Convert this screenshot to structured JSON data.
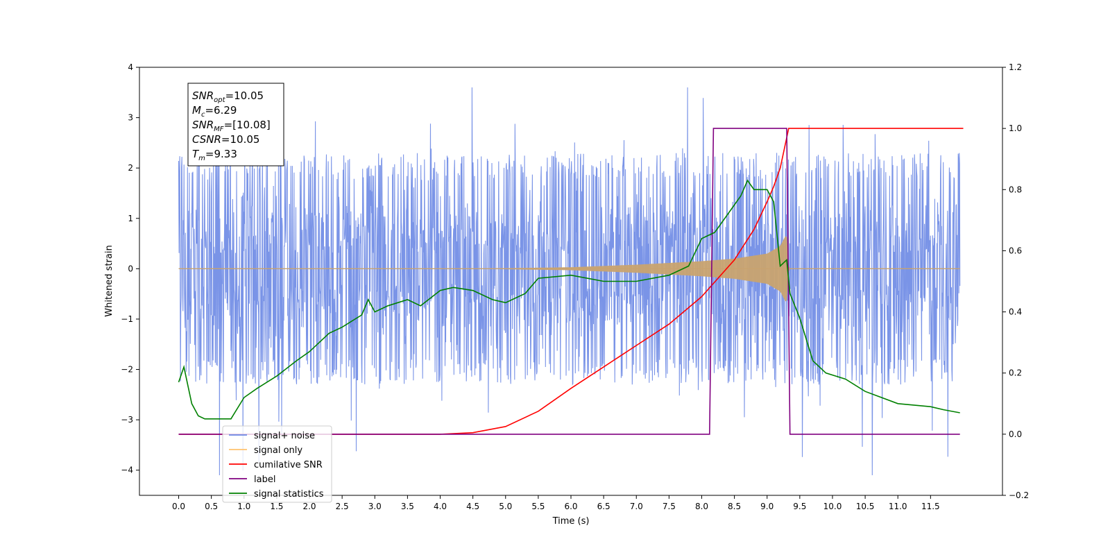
{
  "chart_data": {
    "type": "line",
    "title": "",
    "xlabel": "Time (s)",
    "ylabel": "Whitened strain",
    "xlim": [
      -0.6,
      12.6
    ],
    "ylim": [
      -4.5,
      4
    ],
    "ylim_right": [
      -0.2,
      1.2
    ],
    "x_ticks": [
      "0.0",
      "0.5",
      "1.0",
      "1.5",
      "2.0",
      "2.5",
      "3.0",
      "3.5",
      "4.0",
      "4.5",
      "5.0",
      "5.5",
      "6.0",
      "6.5",
      "7.0",
      "7.5",
      "8.0",
      "8.5",
      "9.0",
      "9.5",
      "10.0",
      "10.5",
      "11.0",
      "11.5"
    ],
    "y_ticks_left": [
      "4",
      "3",
      "2",
      "1",
      "0",
      "−1",
      "−2",
      "−3",
      "−4"
    ],
    "y_ticks_right": [
      "1.2",
      "1.0",
      "0.8",
      "0.6",
      "0.4",
      "0.2",
      "0.0",
      "−0.2"
    ],
    "annotation": {
      "lines": [
        {
          "base": "SNR",
          "sub": "opt",
          "rest": "=10.05"
        },
        {
          "base": "M",
          "sub": "c",
          "rest": "=6.29"
        },
        {
          "base": "SNR",
          "sub": "MF",
          "rest": "=[10.08]"
        },
        {
          "base": "CSNR",
          "sub": "",
          "rest": "=10.05"
        },
        {
          "base": "T",
          "sub": "m",
          "rest": "=9.33"
        }
      ]
    },
    "legend_position": "lower-left",
    "series": [
      {
        "name": "signal+ noise",
        "color": "#6b88e4",
        "axis": "left",
        "noise_band": [
          -2.0,
          2.0
        ],
        "spike_range": [
          -4.1,
          3.6
        ]
      },
      {
        "name": "signal only",
        "color": "#ffa500",
        "axis": "left",
        "envelope": {
          "x": [
            0,
            4.5,
            6.0,
            7.0,
            8.0,
            8.5,
            9.0,
            9.2,
            9.3,
            9.33,
            9.35
          ],
          "amp": [
            0,
            0,
            0.03,
            0.08,
            0.15,
            0.2,
            0.3,
            0.45,
            0.7,
            0.0,
            0.0
          ]
        }
      },
      {
        "name": "cumilative SNR",
        "color": "#ff0000",
        "axis": "right",
        "x": [
          0,
          4.0,
          4.5,
          5.0,
          5.5,
          6.0,
          6.5,
          7.0,
          7.5,
          8.0,
          8.5,
          8.8,
          9.0,
          9.1,
          9.2,
          9.3,
          9.33,
          9.35,
          12.0
        ],
        "y": [
          0,
          0,
          0.005,
          0.025,
          0.075,
          0.15,
          0.22,
          0.29,
          0.36,
          0.45,
          0.57,
          0.67,
          0.76,
          0.81,
          0.87,
          0.97,
          1.0,
          1.0,
          1.0
        ]
      },
      {
        "name": "label",
        "color": "#800080",
        "axis": "right",
        "x": [
          0,
          8.12,
          8.18,
          9.3,
          9.35,
          11.95
        ],
        "y": [
          0,
          0,
          1.0,
          1.0,
          0,
          0
        ]
      },
      {
        "name": "signal statistics",
        "color": "#008000",
        "axis": "right",
        "x": [
          0,
          0.08,
          0.2,
          0.3,
          0.4,
          0.6,
          0.8,
          1.0,
          1.2,
          1.5,
          1.8,
          2.0,
          2.3,
          2.5,
          2.8,
          2.9,
          3.0,
          3.2,
          3.5,
          3.7,
          4.0,
          4.2,
          4.5,
          4.8,
          5.0,
          5.3,
          5.5,
          6.0,
          6.5,
          7.0,
          7.5,
          7.8,
          8.0,
          8.2,
          8.4,
          8.6,
          8.7,
          8.8,
          9.0,
          9.1,
          9.2,
          9.3,
          9.35,
          9.5,
          9.7,
          9.9,
          10.2,
          10.5,
          11.0,
          11.5,
          11.7,
          11.95
        ],
        "y": [
          0.17,
          0.22,
          0.1,
          0.06,
          0.05,
          0.05,
          0.05,
          0.12,
          0.15,
          0.19,
          0.24,
          0.27,
          0.33,
          0.35,
          0.39,
          0.44,
          0.4,
          0.42,
          0.44,
          0.42,
          0.47,
          0.48,
          0.47,
          0.44,
          0.43,
          0.46,
          0.51,
          0.52,
          0.5,
          0.5,
          0.52,
          0.55,
          0.64,
          0.66,
          0.72,
          0.78,
          0.83,
          0.8,
          0.8,
          0.76,
          0.55,
          0.57,
          0.46,
          0.38,
          0.24,
          0.2,
          0.18,
          0.14,
          0.1,
          0.09,
          0.08,
          0.07
        ]
      }
    ]
  }
}
